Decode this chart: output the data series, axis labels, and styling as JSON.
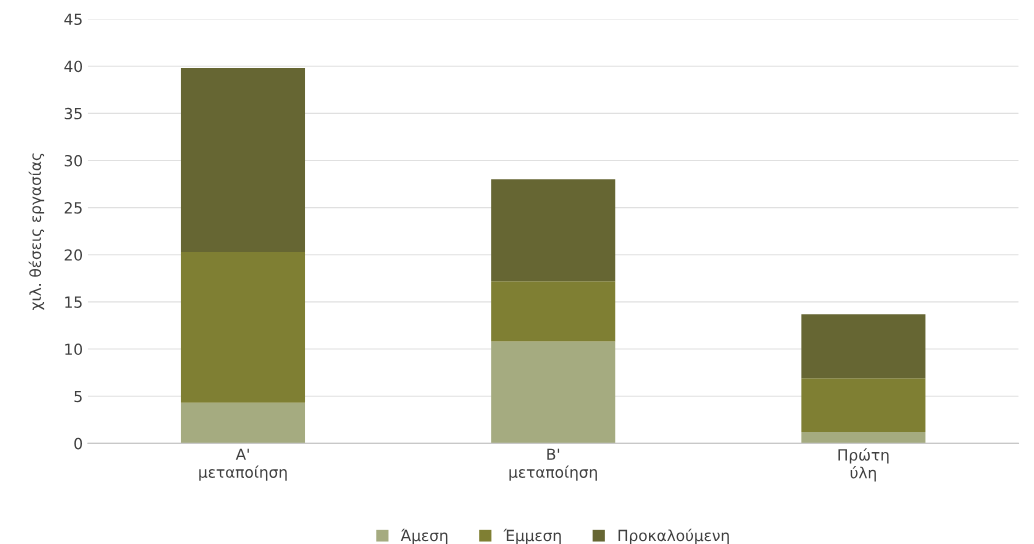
{
  "chart_data": {
    "type": "bar",
    "stacked": true,
    "ylabel": "χιλ. θέσεις εργασίας",
    "categories": [
      "A'\nμεταποίηση",
      "B'\nμεταποίηση",
      "Πρώτη\nύλη"
    ],
    "series": [
      {
        "name": "Άμεση",
        "color": "#a5ab80",
        "values": [
          4.3,
          10.8,
          1.2
        ]
      },
      {
        "name": "Έμμεση",
        "color": "#7f7f33",
        "values": [
          16.0,
          6.4,
          5.7
        ]
      },
      {
        "name": "Προκαλούμενη",
        "color": "#666633",
        "values": [
          19.5,
          10.8,
          6.8
        ]
      }
    ],
    "ylim": [
      0,
      45
    ],
    "yticks": [
      0,
      5,
      10,
      15,
      20,
      25,
      30,
      35,
      40,
      45
    ],
    "grid": "y",
    "legend": "bottom"
  }
}
